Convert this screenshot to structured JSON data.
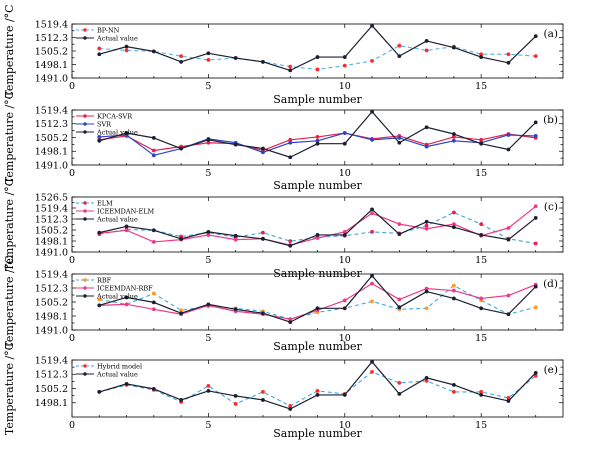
{
  "figure": {
    "y_label": "Temperature /°C",
    "x_label": "Sample number"
  },
  "colors": {
    "actual": "#1b2030",
    "bpnn": "#ff2a2a",
    "bpnn_line": "#4fb3e6",
    "kpca": "#e8204a",
    "svr": "#2a46c8",
    "elm": "#3aa8e0",
    "iceemdan_elm": "#ee3a86",
    "rbf": "#ff9a2a",
    "rbf_line": "#3aa8e0",
    "iceemdan_rbf": "#ee3a86",
    "hybrid": "#ff2a2a",
    "hybrid_line": "#3aa8e0"
  },
  "chart_data": [
    {
      "panel": "(a)",
      "type": "line",
      "x": [
        1,
        2,
        3,
        4,
        5,
        6,
        7,
        8,
        9,
        10,
        11,
        12,
        13,
        14,
        15,
        16,
        17
      ],
      "xlim": [
        0,
        18
      ],
      "xticks": [
        0,
        5,
        10,
        15
      ],
      "ylim": [
        1491.0,
        1519.4
      ],
      "yticks": [
        1491.0,
        1498.1,
        1505.2,
        1512.3,
        1519.4
      ],
      "ytick_labels": [
        "1491.0",
        "1498.1",
        "1505.2",
        "1512.3",
        "1519.4"
      ],
      "series": [
        {
          "name": "BP-NN",
          "style": "dashed",
          "marker": "dot",
          "color_key": "bpnn_line",
          "marker_key": "bpnn",
          "values": [
            1506.5,
            1505.5,
            1505.0,
            1502.5,
            1500.5,
            1501.5,
            1499.5,
            1497.0,
            1495.5,
            1497.5,
            1500.0,
            1508.0,
            1505.5,
            1507.5,
            1503.5,
            1503.5,
            1502.5
          ]
        },
        {
          "name": "Actual value",
          "style": "solid",
          "marker": "dot",
          "color_key": "actual",
          "marker_key": "actual",
          "values": [
            1503.5,
            1507.5,
            1505.0,
            1499.5,
            1504.0,
            1501.5,
            1499.5,
            1495.0,
            1502.0,
            1502.0,
            1518.5,
            1502.5,
            1510.5,
            1507.0,
            1502.0,
            1499.0,
            1513.0
          ]
        }
      ]
    },
    {
      "panel": "(b)",
      "type": "line",
      "x": [
        1,
        2,
        3,
        4,
        5,
        6,
        7,
        8,
        9,
        10,
        11,
        12,
        13,
        14,
        15,
        16,
        17
      ],
      "xlim": [
        0,
        18
      ],
      "xticks": [
        0,
        5,
        10,
        15
      ],
      "ylim": [
        1491.0,
        1519.4
      ],
      "yticks": [
        1491.0,
        1498.1,
        1505.2,
        1512.3,
        1519.4
      ],
      "ytick_labels": [
        "1491.0",
        "1498.1",
        "1505.2",
        "1512.3",
        "1519.4"
      ],
      "series": [
        {
          "name": "KPCA-SVR",
          "style": "solid",
          "marker": "dot",
          "color_key": "kpca",
          "marker_key": "kpca",
          "values": [
            1504.0,
            1506.0,
            1498.5,
            1500.5,
            1502.5,
            1502.0,
            1498.5,
            1504.0,
            1505.5,
            1507.5,
            1504.5,
            1506.0,
            1501.5,
            1505.5,
            1504.0,
            1507.0,
            1505.0
          ]
        },
        {
          "name": "SVR",
          "style": "solid",
          "marker": "dot",
          "color_key": "svr",
          "marker_key": "svr",
          "values": [
            1505.5,
            1506.5,
            1496.0,
            1499.5,
            1504.5,
            1502.5,
            1497.5,
            1502.5,
            1503.5,
            1507.5,
            1504.0,
            1505.0,
            1500.5,
            1503.5,
            1502.5,
            1506.5,
            1506.0
          ]
        },
        {
          "name": "Actual value",
          "style": "solid",
          "marker": "dot",
          "color_key": "actual",
          "marker_key": "actual",
          "values": [
            1503.5,
            1507.5,
            1505.0,
            1499.5,
            1504.0,
            1501.5,
            1499.5,
            1495.0,
            1502.0,
            1502.0,
            1518.5,
            1502.5,
            1510.5,
            1507.0,
            1502.0,
            1499.0,
            1513.0
          ]
        }
      ]
    },
    {
      "panel": "(c)",
      "type": "line",
      "x": [
        1,
        2,
        3,
        4,
        5,
        6,
        7,
        8,
        9,
        10,
        11,
        12,
        13,
        14,
        15,
        16,
        17
      ],
      "xlim": [
        0,
        18
      ],
      "xticks": [
        0,
        5,
        10,
        15
      ],
      "ylim": [
        1491.0,
        1526.5
      ],
      "yticks": [
        1491.0,
        1498.1,
        1505.2,
        1512.3,
        1519.4,
        1526.5
      ],
      "ytick_labels": [
        "1491.0",
        "1498.1",
        "1505.2",
        "1512.3",
        "1519.4",
        "1526.5"
      ],
      "series": [
        {
          "name": "ELM",
          "style": "dashed",
          "marker": "dot",
          "color_key": "elm",
          "marker_key": "kpca",
          "values": [
            1502.5,
            1505.5,
            1505.0,
            1501.0,
            1503.5,
            1500.5,
            1503.5,
            1498.0,
            1500.5,
            1501.5,
            1504.0,
            1503.0,
            1508.0,
            1516.5,
            1509.0,
            1499.5,
            1496.5
          ]
        },
        {
          "name": "ICEEMDAN-ELM",
          "style": "solid",
          "marker": "dot",
          "color_key": "iceemdan_elm",
          "marker_key": "iceemdan_elm",
          "values": [
            1503.0,
            1505.0,
            1497.5,
            1499.0,
            1502.0,
            1499.0,
            1499.5,
            1495.5,
            1500.0,
            1504.0,
            1516.0,
            1509.0,
            1506.0,
            1509.0,
            1501.5,
            1506.5,
            1520.5
          ]
        },
        {
          "name": "Actual value",
          "style": "solid",
          "marker": "dot",
          "color_key": "actual",
          "marker_key": "actual",
          "values": [
            1503.5,
            1507.5,
            1505.0,
            1499.5,
            1504.0,
            1501.5,
            1499.5,
            1495.0,
            1502.0,
            1502.0,
            1518.5,
            1502.5,
            1510.5,
            1507.0,
            1502.0,
            1499.0,
            1513.0
          ]
        }
      ]
    },
    {
      "panel": "(d)",
      "type": "line",
      "x": [
        1,
        2,
        3,
        4,
        5,
        6,
        7,
        8,
        9,
        10,
        11,
        12,
        13,
        14,
        15,
        16,
        17
      ],
      "xlim": [
        0,
        18
      ],
      "xticks": [
        0,
        5,
        10,
        15
      ],
      "ylim": [
        1491.0,
        1519.4
      ],
      "yticks": [
        1491.0,
        1498.1,
        1505.2,
        1512.3,
        1519.4
      ],
      "ytick_labels": [
        "1491.0",
        "1498.1",
        "1505.2",
        "1512.3",
        "1519.4"
      ],
      "series": [
        {
          "name": "RBF",
          "style": "dashed",
          "marker": "dot",
          "color_key": "rbf_line",
          "marker_key": "rbf",
          "values": [
            1506.5,
            1504.0,
            1509.5,
            1501.0,
            1503.0,
            1502.0,
            1500.5,
            1496.5,
            1500.0,
            1502.0,
            1505.5,
            1501.5,
            1502.0,
            1513.5,
            1506.0,
            1499.0,
            1502.5
          ]
        },
        {
          "name": "ICEEMDAN-RBF",
          "style": "solid",
          "marker": "dot",
          "color_key": "iceemdan_rbf",
          "marker_key": "iceemdan_rbf",
          "values": [
            1503.5,
            1504.0,
            1501.5,
            1499.0,
            1503.5,
            1500.5,
            1499.0,
            1496.5,
            1501.0,
            1506.0,
            1514.5,
            1506.5,
            1512.0,
            1511.0,
            1507.0,
            1508.5,
            1514.0
          ]
        },
        {
          "name": "Actual value",
          "style": "solid",
          "marker": "dot",
          "color_key": "actual",
          "marker_key": "actual",
          "values": [
            1503.5,
            1507.5,
            1505.0,
            1499.5,
            1504.0,
            1501.5,
            1499.5,
            1495.0,
            1502.0,
            1502.0,
            1518.5,
            1502.5,
            1510.5,
            1507.0,
            1502.0,
            1499.0,
            1513.0
          ]
        }
      ]
    },
    {
      "panel": "(e)",
      "type": "line",
      "x": [
        1,
        2,
        3,
        4,
        5,
        6,
        7,
        8,
        9,
        10,
        11,
        12,
        13,
        14,
        15,
        16,
        17
      ],
      "xlim": [
        0,
        18
      ],
      "xticks": [
        0,
        5,
        10,
        15
      ],
      "ylim": [
        1491.0,
        1519.4
      ],
      "yticks": [
        1498.1,
        1505.2,
        1512.3,
        1519.4
      ],
      "ytick_labels": [
        "1498.1",
        "1505.2",
        "1512.3",
        "1519.4"
      ],
      "series": [
        {
          "name": "Hybrid model",
          "style": "dashed",
          "marker": "dot",
          "color_key": "hybrid_line",
          "marker_key": "hybrid",
          "values": [
            1503.5,
            1507.0,
            1504.5,
            1498.5,
            1506.5,
            1497.5,
            1503.5,
            1496.5,
            1504.0,
            1502.5,
            1513.5,
            1508.0,
            1509.0,
            1503.5,
            1503.5,
            1500.5,
            1511.5
          ]
        },
        {
          "name": "Actual value",
          "style": "solid",
          "marker": "dot",
          "color_key": "actual",
          "marker_key": "actual",
          "values": [
            1503.5,
            1507.5,
            1505.0,
            1499.5,
            1504.0,
            1501.5,
            1499.5,
            1495.0,
            1502.0,
            1502.0,
            1518.5,
            1502.5,
            1510.5,
            1507.0,
            1502.0,
            1499.0,
            1513.0
          ]
        }
      ]
    }
  ]
}
